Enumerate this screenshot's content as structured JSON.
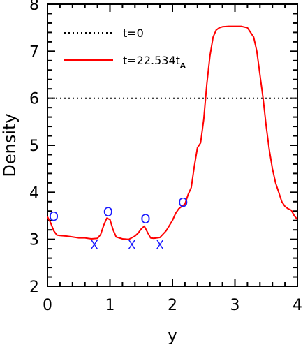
{
  "chart_data": {
    "type": "line",
    "xlabel": "y",
    "ylabel": "Density",
    "xlim": [
      0,
      4
    ],
    "ylim": [
      2,
      8
    ],
    "x_ticks": [
      0,
      1,
      2,
      3,
      4
    ],
    "y_ticks": [
      2,
      3,
      4,
      5,
      6,
      7,
      8
    ],
    "x_tick_labels": [
      "0",
      "1",
      "2",
      "3",
      "4"
    ],
    "y_tick_labels": [
      "2",
      "3",
      "4",
      "5",
      "6",
      "7",
      "8"
    ],
    "legend": {
      "position": "top-left",
      "entries": [
        {
          "label": "t=0",
          "style": "dotted",
          "color": "#000000"
        },
        {
          "label": "t=22.534t",
          "label_subscript": "A",
          "style": "solid",
          "color": "#ff0000"
        }
      ]
    },
    "series": [
      {
        "name": "t=0",
        "style": "dotted",
        "color": "#000000",
        "x": [
          0,
          4
        ],
        "y": [
          6.0,
          6.0
        ]
      },
      {
        "name": "t=22.534t_A",
        "style": "solid",
        "color": "#ff0000",
        "x": [
          0.0,
          0.05,
          0.1,
          0.15,
          0.2,
          0.3,
          0.4,
          0.5,
          0.6,
          0.7,
          0.8,
          0.85,
          0.9,
          0.95,
          1.0,
          1.05,
          1.1,
          1.2,
          1.3,
          1.4,
          1.45,
          1.5,
          1.55,
          1.6,
          1.65,
          1.7,
          1.8,
          1.9,
          2.0,
          2.05,
          2.1,
          2.15,
          2.2,
          2.25,
          2.3,
          2.35,
          2.4,
          2.45,
          2.5,
          2.55,
          2.6,
          2.65,
          2.7,
          2.75,
          2.8,
          2.9,
          3.0,
          3.1,
          3.2,
          3.3,
          3.35,
          3.4,
          3.45,
          3.5,
          3.55,
          3.6,
          3.65,
          3.7,
          3.75,
          3.8,
          3.85,
          3.9,
          3.95,
          4.0
        ],
        "y": [
          3.48,
          3.35,
          3.18,
          3.09,
          3.08,
          3.07,
          3.05,
          3.03,
          3.03,
          3.01,
          3.02,
          3.1,
          3.3,
          3.45,
          3.42,
          3.2,
          3.05,
          3.01,
          3.0,
          3.07,
          3.13,
          3.22,
          3.28,
          3.15,
          3.03,
          3.02,
          3.04,
          3.18,
          3.4,
          3.55,
          3.65,
          3.7,
          3.75,
          3.95,
          4.1,
          4.55,
          4.95,
          5.05,
          5.55,
          6.3,
          6.9,
          7.3,
          7.45,
          7.5,
          7.52,
          7.53,
          7.53,
          7.53,
          7.5,
          7.3,
          7.0,
          6.5,
          6.0,
          5.4,
          4.9,
          4.5,
          4.2,
          4.0,
          3.8,
          3.7,
          3.65,
          3.62,
          3.5,
          3.42
        ]
      }
    ],
    "annotations": [
      {
        "symbol": "O",
        "x": 0.1,
        "y": 3.5
      },
      {
        "symbol": "O",
        "x": 0.97,
        "y": 3.6
      },
      {
        "symbol": "O",
        "x": 1.57,
        "y": 3.45
      },
      {
        "symbol": "O",
        "x": 2.17,
        "y": 3.8
      },
      {
        "symbol": "X",
        "x": 0.75,
        "y": 2.9
      },
      {
        "symbol": "X",
        "x": 1.35,
        "y": 2.9
      },
      {
        "symbol": "X",
        "x": 1.8,
        "y": 2.9
      }
    ],
    "grid": false
  }
}
